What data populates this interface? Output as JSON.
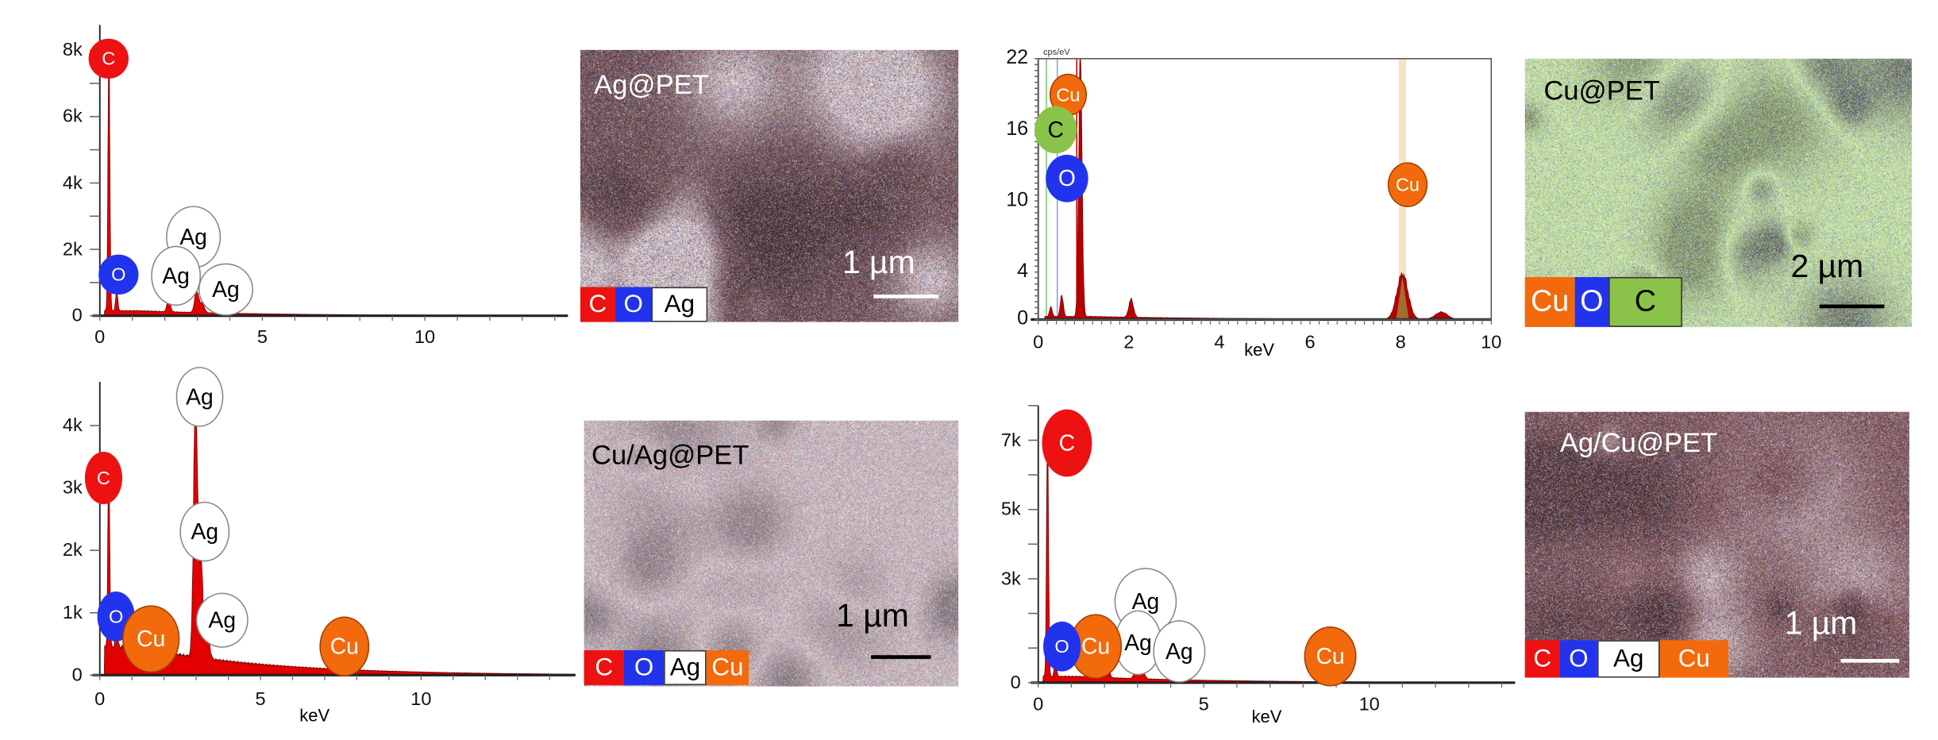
{
  "chart_data": [
    {
      "type": "area",
      "title": "",
      "xlabel": "",
      "ylabel": "",
      "xlim": [
        0,
        14.4
      ],
      "ylim": [
        0,
        8760
      ],
      "xticks": [
        0,
        5,
        10
      ],
      "xtick_labels": [
        "0",
        "5",
        "10"
      ],
      "yticks": [
        0,
        2000,
        4000,
        6000,
        8000
      ],
      "ytick_labels": [
        "0",
        "2k",
        "4k",
        "6k",
        "8k"
      ],
      "peaks": [
        {
          "element": "C",
          "energy_keV": 0.28,
          "counts": 7700
        },
        {
          "element": "O",
          "energy_keV": 0.52,
          "counts": 600
        },
        {
          "element": "",
          "energy_keV": 2.12,
          "counts": 380
        },
        {
          "element": "Ag",
          "energy_keV": 2.98,
          "counts": 650
        },
        {
          "element": "Ag",
          "energy_keV": 3.15,
          "counts": 300
        }
      ],
      "peak_labels": [
        "C",
        "O",
        "Ag",
        "Ag",
        "Ag"
      ],
      "background_counts": 150
    },
    {
      "type": "area",
      "title": "",
      "xlabel": "keV",
      "ylabel": "cps/eV",
      "xlim": [
        0,
        10
      ],
      "ylim": [
        0,
        22
      ],
      "xticks": [
        0,
        2,
        4,
        6,
        8,
        10
      ],
      "xtick_labels": [
        "0",
        "2",
        "4",
        "6",
        "8",
        "10"
      ],
      "yticks": [
        0,
        4,
        10,
        16,
        22
      ],
      "ytick_labels": [
        "0",
        "4",
        "10",
        "16",
        "22"
      ],
      "peaks": [
        {
          "element": "C",
          "energy_keV": 0.28,
          "counts": 0.8
        },
        {
          "element": "O",
          "energy_keV": 0.52,
          "counts": 1.8
        },
        {
          "element": "Cu",
          "energy_keV": 0.93,
          "counts": 22
        },
        {
          "element": "",
          "energy_keV": 2.05,
          "counts": 1.5
        },
        {
          "element": "Cu",
          "energy_keV": 8.04,
          "counts": 3.8
        },
        {
          "element": "Cu",
          "energy_keV": 8.9,
          "counts": 0.6
        }
      ],
      "peak_labels": [
        "Cu",
        "C",
        "O",
        "Cu"
      ],
      "background_counts": 0.25
    },
    {
      "type": "area",
      "title": "",
      "xlabel": "keV",
      "ylabel": "",
      "xlim": [
        0,
        14.8
      ],
      "ylim": [
        0,
        4700
      ],
      "xticks": [
        0,
        5,
        10
      ],
      "xtick_labels": [
        "0",
        "5",
        "10"
      ],
      "yticks": [
        0,
        1000,
        2000,
        3000,
        4000
      ],
      "ytick_labels": [
        "0",
        "1k",
        "2k",
        "3k",
        "4k"
      ],
      "peaks": [
        {
          "element": "C",
          "energy_keV": 0.28,
          "counts": 3000
        },
        {
          "element": "O",
          "energy_keV": 0.52,
          "counts": 500
        },
        {
          "element": "Cu",
          "energy_keV": 0.93,
          "counts": 300
        },
        {
          "element": "Ag",
          "energy_keV": 2.98,
          "counts": 4100
        },
        {
          "element": "Ag",
          "energy_keV": 3.15,
          "counts": 1500
        },
        {
          "element": "Ag",
          "energy_keV": 3.35,
          "counts": 400
        }
      ],
      "peak_labels": [
        "Ag",
        "C",
        "Ag",
        "O",
        "Cu",
        "Ag",
        "Cu"
      ],
      "background_counts": 450
    },
    {
      "type": "area",
      "title": "",
      "xlabel": "keV",
      "ylabel": "",
      "xlim": [
        0,
        14.4
      ],
      "ylim": [
        0,
        8000
      ],
      "xticks": [
        0,
        5,
        10
      ],
      "xtick_labels": [
        "0",
        "5",
        "10"
      ],
      "yticks": [
        0,
        3000,
        5000,
        7000
      ],
      "ytick_labels": [
        "0",
        "3k",
        "5k",
        "7k"
      ],
      "peaks": [
        {
          "element": "C",
          "energy_keV": 0.28,
          "counts": 7000
        },
        {
          "element": "O",
          "energy_keV": 0.52,
          "counts": 500
        },
        {
          "element": "",
          "energy_keV": 2.1,
          "counts": 350
        },
        {
          "element": "Ag",
          "energy_keV": 2.98,
          "counts": 520
        },
        {
          "element": "Ag",
          "energy_keV": 3.15,
          "counts": 250
        }
      ],
      "peak_labels": [
        "C",
        "Ag",
        "Ag",
        "Cu",
        "O",
        "Ag",
        "Cu"
      ],
      "background_counts": 180
    }
  ],
  "maps": [
    {
      "title": "Ag@PET",
      "scale": "1 µm",
      "legend": [
        "C",
        "O",
        "Ag"
      ]
    },
    {
      "title": "Cu@PET",
      "scale": "2 µm",
      "legend": [
        "Cu",
        "O",
        "C"
      ]
    },
    {
      "title": "Cu/Ag@PET",
      "scale": "1 µm",
      "legend": [
        "C",
        "O",
        "Ag",
        "Cu"
      ]
    },
    {
      "title": "Ag/Cu@PET",
      "scale": "1 µm",
      "legend": [
        "C",
        "O",
        "Ag",
        "Cu"
      ]
    }
  ],
  "element_colors": {
    "C": "#ee1111",
    "O": "#2233ee",
    "Ag": "#ffffff",
    "Cu": "#f26a0c",
    "C_green": "#8bc34a"
  },
  "axis_unit_label": "cps/eV"
}
